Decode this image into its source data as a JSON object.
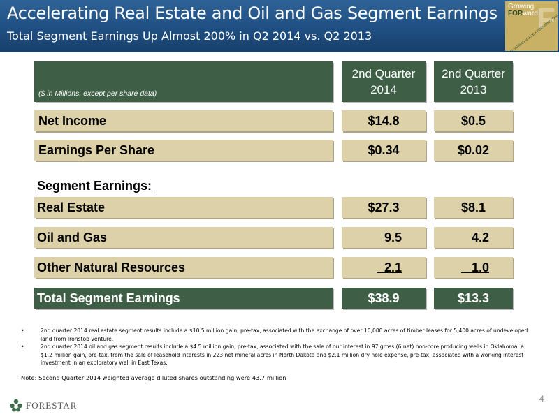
{
  "header": {
    "title": "Accelerating Real Estate and Oil and Gas Segment Earnings",
    "subtitle": "Total Segment Earnings Up Almost 200% in Q2 2014 vs. Q2 2013",
    "badge": {
      "line1": "Growing",
      "line2_bold": "FOR",
      "line2_rest": "ward",
      "diagonal": "DELIVERING VALUE • FOCUSING THE FUTURE"
    }
  },
  "table": {
    "units_note": "($ in Millions, except per share data)",
    "col1": {
      "line1": "2nd Quarter",
      "line2": "2014"
    },
    "col2": {
      "line1": "2nd Quarter",
      "line2": "2013"
    },
    "net_income": {
      "label": "Net Income",
      "v1": "$14.8",
      "v2": "$0.5"
    },
    "eps": {
      "label": "Earnings Per Share",
      "v1": "$0.34",
      "v2": "$0.02"
    },
    "segment_heading": "Segment Earnings:",
    "real_estate": {
      "label": "Real Estate",
      "v1": "$27.3",
      "v2": "$8.1"
    },
    "oil_gas": {
      "label": "Oil and Gas",
      "v1": "9.5",
      "v2": "4.2"
    },
    "other": {
      "label": "Other Natural Resources",
      "v1": "  2.1",
      "v2": "   1.0"
    },
    "total": {
      "label": "Total Segment Earnings",
      "v1": "$38.9",
      "v2": "$13.3"
    }
  },
  "bullets": [
    "2nd quarter 2014 real estate segment results include a $10.5 million gain, pre-tax, associated with the exchange of over 10,000 acres of timber leases for 5,400 acres of undeveloped land from Ironstob venture.",
    "2nd quarter 2014 oil and gas segment results include a $4.5 million gain, pre-tax, associated with the sale of our interest in 97 gross (6 net) non-core producing wells in Oklahoma, a $1.2 million gain, pre-tax, from the sale of leasehold interests in 223 net mineral acres in North Dakota and $2.1 million dry hole expense, pre-tax, associated with a working interest investment in an exploratory well in East Texas."
  ],
  "note": "Note: Second Quarter 2014 weighted average diluted shares outstanding were 43.7 million",
  "footer": {
    "logo_text": "FORESTAR",
    "page_number": "4"
  },
  "colors": {
    "header_blue": "#1f4f82",
    "green": "#3e5e46",
    "tan": "#dcd1a8",
    "gold": "#c8b065"
  }
}
